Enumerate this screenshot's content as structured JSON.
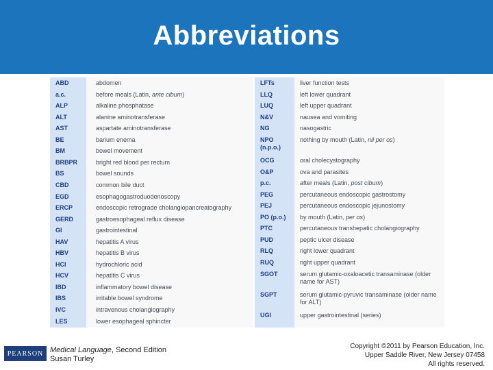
{
  "title": "Abbreviations",
  "table": {
    "left": [
      {
        "abbr": "ABD",
        "def": "abdomen"
      },
      {
        "abbr": "a.c.",
        "def": "before meals (Latin, ",
        "def_italic": "ante cibum",
        "def_after": ")"
      },
      {
        "abbr": "ALP",
        "def": "alkaline phosphatase"
      },
      {
        "abbr": "ALT",
        "def": "alanine aminotransferase"
      },
      {
        "abbr": "AST",
        "def": "aspartate aminotransferase"
      },
      {
        "abbr": "BE",
        "def": "barium enema"
      },
      {
        "abbr": "BM",
        "def": "bowel movement"
      },
      {
        "abbr": "BRBPR",
        "def": "bright red blood per rectum"
      },
      {
        "abbr": "BS",
        "def": "bowel sounds"
      },
      {
        "abbr": "CBD",
        "def": "common bile duct"
      },
      {
        "abbr": "EGD",
        "def": "esophagogastroduodenoscopy"
      },
      {
        "abbr": "ERCP",
        "def": "endoscopic retrograde cholangiopancreatography"
      },
      {
        "abbr": "GERD",
        "def": "gastroesophageal reflux disease"
      },
      {
        "abbr": "GI",
        "def": "gastrointestinal"
      },
      {
        "abbr": "HAV",
        "def": "hepatitis A virus"
      },
      {
        "abbr": "HBV",
        "def": "hepatitis B virus"
      },
      {
        "abbr": "HCl",
        "def": "hydrochloric acid"
      },
      {
        "abbr": "HCV",
        "def": "hepatitis C virus"
      },
      {
        "abbr": "IBD",
        "def": "inflammatory bowel disease"
      },
      {
        "abbr": "IBS",
        "def": "irritable bowel syndrome"
      },
      {
        "abbr": "IVC",
        "def": "intravenous cholangiography"
      },
      {
        "abbr": "LES",
        "def": "lower esophageal sphincter"
      }
    ],
    "right": [
      {
        "abbr": "LFTs",
        "def": "liver function tests"
      },
      {
        "abbr": "LLQ",
        "def": "left lower quadrant"
      },
      {
        "abbr": "LUQ",
        "def": "left upper quadrant"
      },
      {
        "abbr": "N&V",
        "def": "nausea and vomiting"
      },
      {
        "abbr": "NG",
        "def": "nasogastric"
      },
      {
        "abbr": "NPO",
        "abbr2": "(n.p.o.)",
        "def": "nothing by mouth (Latin, ",
        "def_italic": "nil per os",
        "def_after": ")"
      },
      {
        "abbr": "OCG",
        "def": "oral cholecystography"
      },
      {
        "abbr": "O&P",
        "def": "ova and parasites"
      },
      {
        "abbr": "p.c.",
        "def": "after meals (Latin, ",
        "def_italic": "post cibum",
        "def_after": ")"
      },
      {
        "abbr": "PEG",
        "def": "percutaneous endoscopic gastrostomy"
      },
      {
        "abbr": "PEJ",
        "def": "percutaneous endoscopic jejunostomy"
      },
      {
        "abbr": "PO (p.o.)",
        "def": "by mouth (Latin, ",
        "def_italic": "per os",
        "def_after": ")"
      },
      {
        "abbr": "PTC",
        "def": "percutaneous transhepatic cholangiography"
      },
      {
        "abbr": "PUD",
        "def": "peptic ulcer disease"
      },
      {
        "abbr": "RLQ",
        "def": "right lower quadrant"
      },
      {
        "abbr": "RUQ",
        "def": "right upper quadrant"
      },
      {
        "abbr": "SGOT",
        "def": "serum glutamic-oxaloacetic transaminase (older",
        "def2": "name for AST)"
      },
      {
        "abbr": "SGPT",
        "def": "serum glutamic-pyruvic transaminase (older name",
        "def2": "for ALT)"
      },
      {
        "abbr": "UGI",
        "def": "upper gastrointestinal (series)"
      }
    ]
  },
  "footer": {
    "logo": "PEARSON",
    "book_title": "Medical Language",
    "book_edition": ", Second Edition",
    "author": "Susan Turley",
    "copyright_1": "Copyright ©2011 by Pearson Education, Inc.",
    "copyright_2": "Upper Saddle River, New Jersey 07458",
    "copyright_3": "All rights reserved."
  },
  "colors": {
    "header_bg": "#1c75bc",
    "abbr_col_bg": "#d4e3f5",
    "abbr_text": "#1e3f86"
  }
}
